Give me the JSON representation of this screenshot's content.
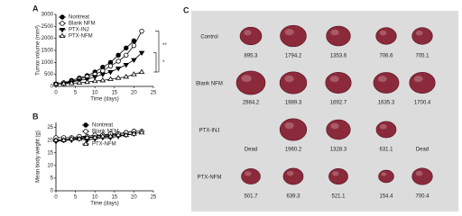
{
  "chart_data": [
    {
      "type": "line",
      "panel": "A",
      "xlabel": "Time (days)",
      "ylabel": "Tumor volume (mm³)",
      "x": [
        0,
        2,
        4,
        6,
        8,
        10,
        12,
        14,
        16,
        18,
        20,
        22
      ],
      "xlim": [
        0,
        25
      ],
      "xticks": [
        0,
        5,
        10,
        15,
        20,
        25
      ],
      "ylim": [
        0,
        3000
      ],
      "yticks": [
        0,
        500,
        1000,
        1500,
        2000,
        2500,
        3000
      ],
      "legend": "upper left",
      "annotations": [
        "**",
        "*"
      ],
      "series": [
        {
          "name": "Nontreat",
          "color": "#000000",
          "marker": "circle",
          "filled": true,
          "values": [
            100,
            150,
            250,
            350,
            450,
            600,
            800,
            1000,
            1300,
            1600,
            1900,
            null
          ]
        },
        {
          "name": "Blank NFM",
          "color": "#000000",
          "marker": "circle",
          "filled": false,
          "values": [
            100,
            150,
            200,
            300,
            400,
            500,
            650,
            850,
            1050,
            1300,
            1700,
            2300
          ]
        },
        {
          "name": "PTX-INJ",
          "color": "#000000",
          "marker": "triangle-down",
          "filled": true,
          "values": [
            100,
            120,
            180,
            250,
            300,
            400,
            500,
            600,
            750,
            900,
            1100,
            1400
          ]
        },
        {
          "name": "PTX-NFM",
          "color": "#000000",
          "marker": "triangle",
          "filled": false,
          "values": [
            100,
            110,
            130,
            150,
            180,
            220,
            250,
            300,
            350,
            400,
            500,
            600
          ]
        }
      ]
    },
    {
      "type": "line",
      "panel": "B",
      "xlabel": "Time (days)",
      "ylabel": "Mean body weight (g)",
      "x": [
        0,
        2,
        4,
        6,
        8,
        10,
        12,
        14,
        16,
        18,
        20,
        22
      ],
      "xlim": [
        0,
        25
      ],
      "xticks": [
        0,
        5,
        10,
        15,
        20,
        25
      ],
      "ylim": [
        0,
        27
      ],
      "yticks": [
        0,
        5,
        10,
        15,
        20,
        25
      ],
      "legend": "upper center",
      "series": [
        {
          "name": "Nontreat",
          "color": "#000000",
          "marker": "circle",
          "filled": true,
          "values": [
            20,
            20,
            20.5,
            21,
            21,
            21.5,
            22,
            22,
            22.5,
            23,
            23.5,
            null
          ]
        },
        {
          "name": "Blank NFM",
          "color": "#000000",
          "marker": "circle",
          "filled": false,
          "values": [
            21,
            21,
            21,
            21.5,
            21.5,
            22,
            22,
            22.5,
            22.5,
            23,
            23.5,
            23.5
          ]
        },
        {
          "name": "PTX-INJ",
          "color": "#000000",
          "marker": "triangle-down",
          "filled": true,
          "values": [
            19.5,
            20,
            20,
            20.5,
            20,
            20.5,
            21,
            21,
            21.5,
            22,
            22.5,
            null
          ]
        },
        {
          "name": "PTX-NFM",
          "color": "#000000",
          "marker": "triangle",
          "filled": false,
          "values": [
            20,
            20,
            20.5,
            20.5,
            21,
            21,
            21.5,
            21.5,
            22,
            22,
            22.5,
            23
          ]
        }
      ]
    }
  ],
  "panel_c": {
    "label": "C",
    "rows": [
      {
        "label": "Control",
        "values": [
          "895.3",
          "1794.2",
          "1353.6",
          "706.6",
          "705.1"
        ]
      },
      {
        "label": "Blank NFM",
        "values": [
          "2984.2",
          "1989.3",
          "1692.7",
          "1635.3",
          "1700.4"
        ]
      },
      {
        "label": "PTX-INJ",
        "values": [
          "Dead",
          "1960.2",
          "1328.3",
          "631.1",
          "Dead"
        ]
      },
      {
        "label": "PTX-NFM",
        "values": [
          "501.7",
          "639.3",
          "521.1",
          "154.4",
          "700.4"
        ]
      }
    ]
  }
}
